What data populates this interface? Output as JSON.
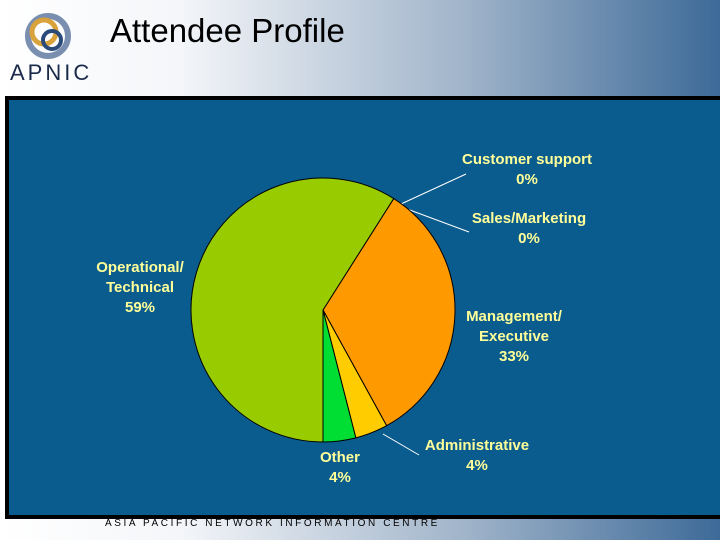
{
  "header": {
    "title": "Attendee Profile",
    "logo_text": "APNIC"
  },
  "footer": {
    "text": "ASIA PACIFIC NETWORK INFORMATION CENTRE"
  },
  "chart_data": {
    "type": "pie",
    "categories": [
      "Customer support",
      "Sales/Marketing",
      "Management/\nExecutive",
      "Administrative",
      "Other",
      "Operational/\nTechnical"
    ],
    "values": [
      0,
      0,
      33,
      4,
      4,
      59
    ],
    "value_labels": [
      "0%",
      "0%",
      "33%",
      "4%",
      "4%",
      "59%"
    ],
    "colors": [
      "#ffffff",
      "#ff99cc",
      "#ff9900",
      "#ffcc00",
      "#00dd33",
      "#99cc00"
    ]
  }
}
